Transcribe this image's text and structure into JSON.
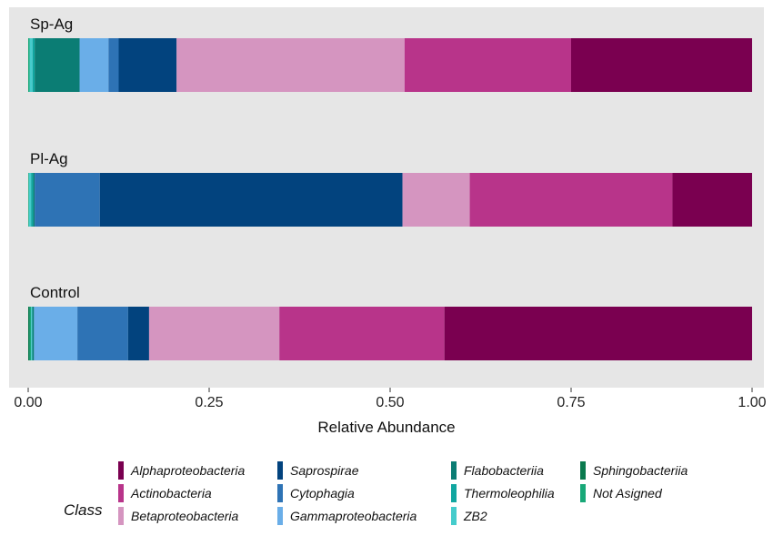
{
  "chart_data": {
    "type": "bar",
    "orientation": "horizontal",
    "stacked": true,
    "title": "",
    "xlabel": "Relative Abundance",
    "ylabel": "",
    "xlim": [
      0,
      1
    ],
    "xticks": [
      0,
      0.25,
      0.5,
      0.75,
      1
    ],
    "x_tick_labels": [
      "0.00",
      "0.25",
      "0.50",
      "0.75",
      "1.00"
    ],
    "grid": false,
    "categories": [
      "Sp-Ag",
      "Pl-Ag",
      "Control"
    ],
    "legend_title": "Class",
    "legend_position": "bottom",
    "series": [
      {
        "name": "Sphingobacteriia",
        "color": "#0a7a4e",
        "values": [
          0.0,
          0.0,
          0.002
        ]
      },
      {
        "name": "Not Asigned",
        "color": "#18a878",
        "values": [
          0.002,
          0.001,
          0.002
        ]
      },
      {
        "name": "ZB2",
        "color": "#45cccc",
        "values": [
          0.004,
          0.003,
          0.001
        ]
      },
      {
        "name": "Thermoleophilia",
        "color": "#11a6a0",
        "values": [
          0.003,
          0.003,
          0.001
        ]
      },
      {
        "name": "Flabobacteriia",
        "color": "#0b7d74",
        "values": [
          0.062,
          0.002,
          0.002
        ]
      },
      {
        "name": "Gammaproteobacteria",
        "color": "#6aaee8",
        "values": [
          0.04,
          0.0,
          0.06
        ]
      },
      {
        "name": "Cytophagia",
        "color": "#2e73b5",
        "values": [
          0.014,
          0.09,
          0.07
        ]
      },
      {
        "name": "Saprospirae",
        "color": "#02437e",
        "values": [
          0.08,
          0.418,
          0.029
        ]
      },
      {
        "name": "Betaproteobacteria",
        "color": "#d595c0",
        "values": [
          0.315,
          0.093,
          0.18
        ]
      },
      {
        "name": "Actinobacteria",
        "color": "#b8348a",
        "values": [
          0.23,
          0.28,
          0.228
        ]
      },
      {
        "name": "Alphaproteobacteria",
        "color": "#7a0050",
        "values": [
          0.25,
          0.11,
          0.425
        ]
      }
    ],
    "legend_columns": [
      [
        "Alphaproteobacteria",
        "Actinobacteria",
        "Betaproteobacteria"
      ],
      [
        "Saprospirae",
        "Cytophagia",
        "Gammaproteobacteria"
      ],
      [
        "Flabobacteriia",
        "Thermoleophilia",
        "ZB2"
      ],
      [
        "Sphingobacteriia",
        "Not Asigned"
      ]
    ]
  }
}
